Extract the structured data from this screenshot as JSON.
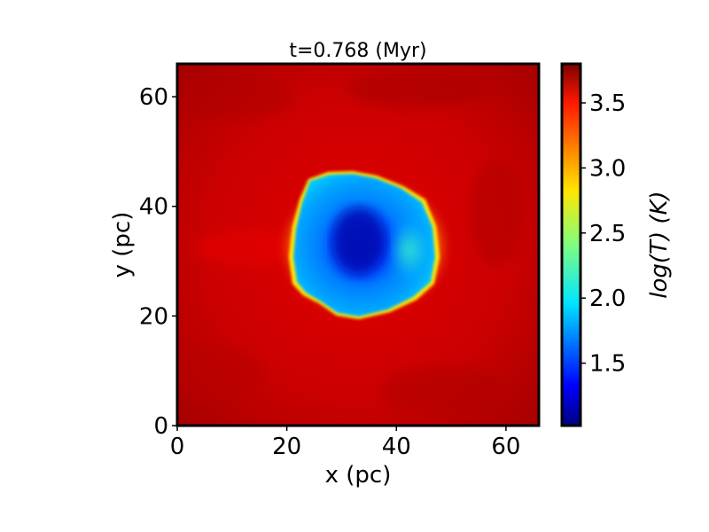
{
  "chart_data": {
    "type": "heatmap",
    "title": "t=0.768 (Myr)",
    "xlabel": "x (pc)",
    "ylabel": "y (pc)",
    "colorbar_label": "log(T) (K)",
    "xlim": [
      0,
      66
    ],
    "ylim": [
      0,
      66
    ],
    "xticks": [
      0,
      20,
      40,
      60
    ],
    "yticks": [
      0,
      20,
      40,
      60
    ],
    "colorbar_range": [
      1.02,
      3.8
    ],
    "colorbar_ticks": [
      "1.5",
      "2.0",
      "2.5",
      "3.0",
      "3.5"
    ],
    "colormap": "jet",
    "grid": false,
    "background_value": 3.65,
    "cold_region": {
      "center": [
        33,
        33
      ],
      "x_extent": [
        21,
        47
      ],
      "y_extent": [
        19.5,
        46.5
      ],
      "typical_value": 1.8,
      "core_value": 1.15,
      "boundary_value_left_right": 2.7
    }
  }
}
